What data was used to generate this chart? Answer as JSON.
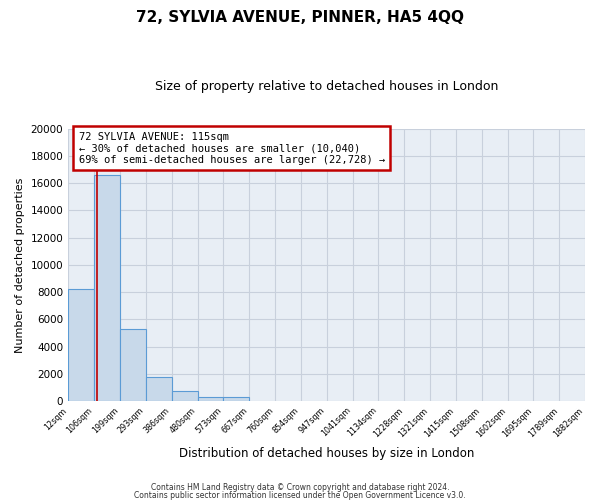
{
  "title": "72, SYLVIA AVENUE, PINNER, HA5 4QQ",
  "subtitle": "Size of property relative to detached houses in London",
  "xlabel": "Distribution of detached houses by size in London",
  "ylabel": "Number of detached properties",
  "bin_labels": [
    "12sqm",
    "106sqm",
    "199sqm",
    "293sqm",
    "386sqm",
    "480sqm",
    "573sqm",
    "667sqm",
    "760sqm",
    "854sqm",
    "947sqm",
    "1041sqm",
    "1134sqm",
    "1228sqm",
    "1321sqm",
    "1415sqm",
    "1508sqm",
    "1602sqm",
    "1695sqm",
    "1789sqm",
    "1882sqm"
  ],
  "bin_edges": [
    12,
    106,
    199,
    293,
    386,
    480,
    573,
    667,
    760,
    854,
    947,
    1041,
    1134,
    1228,
    1321,
    1415,
    1508,
    1602,
    1695,
    1789,
    1882
  ],
  "bar_heights": [
    8200,
    16600,
    5300,
    1750,
    750,
    280,
    280,
    0,
    0,
    0,
    0,
    0,
    0,
    0,
    0,
    0,
    0,
    0,
    0,
    0
  ],
  "bar_color": "#c8d9ea",
  "bar_edge_color": "#5b9bd5",
  "property_line_x": 115,
  "property_line_color": "#c00000",
  "ylim": [
    0,
    20000
  ],
  "yticks": [
    0,
    2000,
    4000,
    6000,
    8000,
    10000,
    12000,
    14000,
    16000,
    18000,
    20000
  ],
  "annotation_line1": "72 SYLVIA AVENUE: 115sqm",
  "annotation_line2": "← 30% of detached houses are smaller (10,040)",
  "annotation_line3": "69% of semi-detached houses are larger (22,728) →",
  "annotation_box_edge": "#c00000",
  "footer1": "Contains HM Land Registry data © Crown copyright and database right 2024.",
  "footer2": "Contains public sector information licensed under the Open Government Licence v3.0.",
  "bg_color": "#ffffff",
  "plot_bg_color": "#e8eef5",
  "grid_color": "#c8d0dc",
  "title_fontsize": 11,
  "subtitle_fontsize": 9
}
